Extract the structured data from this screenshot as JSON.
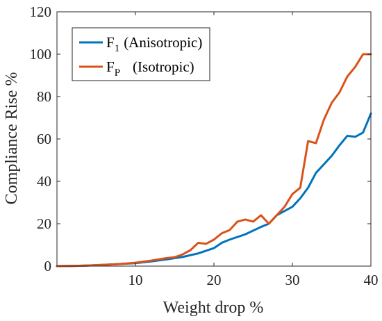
{
  "chart_data": {
    "type": "line",
    "xlabel": "Weight drop %",
    "ylabel": "Compliance Rise %",
    "xlim": [
      0,
      40
    ],
    "ylim": [
      0,
      120
    ],
    "xticks": [
      10,
      20,
      30,
      40
    ],
    "yticks": [
      0,
      20,
      40,
      60,
      80,
      100,
      120
    ],
    "grid": false,
    "legend_position": "top-left",
    "series": [
      {
        "name": "F1 (Anisotropic)",
        "legend_main": "F",
        "legend_sub": "1",
        "legend_rest": "(Anisotropic)",
        "color": "#0072BD",
        "x": [
          0,
          2,
          4,
          6,
          8,
          10,
          12,
          14,
          16,
          18,
          20,
          21,
          22,
          24,
          26,
          27,
          28,
          29,
          30,
          31,
          32,
          33,
          34,
          35,
          36,
          37,
          38,
          39,
          40
        ],
        "y": [
          0,
          0.1,
          0.3,
          0.6,
          1.0,
          1.4,
          2.2,
          3.2,
          4.3,
          6.0,
          8.5,
          11.0,
          12.5,
          15.0,
          18.5,
          20.0,
          24.0,
          26.0,
          28.0,
          32.0,
          37.0,
          44.0,
          48.0,
          52.0,
          57.0,
          61.5,
          61.0,
          63.0,
          72.0
        ]
      },
      {
        "name": "FP (Isotropic)",
        "legend_main": "F",
        "legend_sub": "P",
        "legend_rest": "(Isotropic)",
        "color": "#D95319",
        "x": [
          0,
          2,
          4,
          6,
          8,
          10,
          12,
          14,
          15,
          16,
          17,
          18,
          19,
          20,
          21,
          22,
          23,
          24,
          25,
          26,
          27,
          28,
          29,
          30,
          31,
          32,
          33,
          34,
          35,
          36,
          37,
          38,
          39,
          40
        ],
        "y": [
          0,
          0.1,
          0.3,
          0.6,
          1.0,
          1.6,
          2.6,
          3.8,
          4.2,
          5.5,
          7.5,
          11.0,
          10.5,
          12.5,
          15.5,
          17.0,
          21.0,
          22.0,
          21.0,
          24.0,
          20.0,
          24.0,
          28.0,
          34.0,
          37.0,
          59.0,
          58.0,
          69.0,
          77.0,
          82.0,
          89.5,
          94.0,
          100.0,
          100.0
        ]
      }
    ]
  }
}
